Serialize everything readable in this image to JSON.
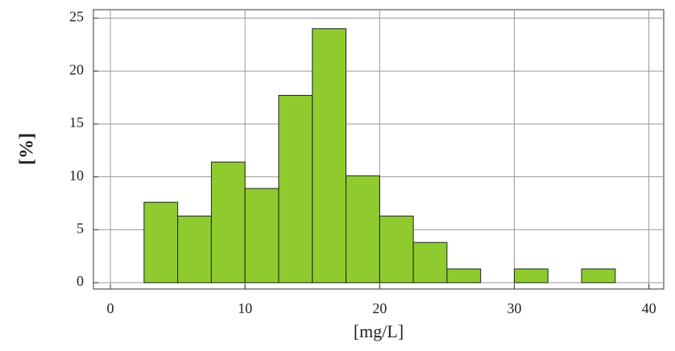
{
  "chart_data": {
    "type": "histogram",
    "x_label": "[mg/L]",
    "y_label": "[%]",
    "bins": [
      2.5,
      5,
      7.5,
      10,
      12.5,
      15,
      17.5,
      20,
      22.5,
      25,
      27.5,
      30,
      32.5,
      35,
      37.5
    ],
    "values": [
      7.6,
      6.3,
      11.4,
      8.9,
      17.7,
      24.0,
      10.1,
      6.3,
      3.8,
      1.3,
      0,
      1.3,
      0,
      1.3
    ],
    "color": "#8fcb2f",
    "xlim": [
      -1.26,
      41.1
    ],
    "ylim": [
      -0.6,
      25.8
    ],
    "xticks": [
      0,
      10,
      20,
      30,
      40
    ],
    "yticks": [
      0,
      5,
      10,
      15,
      20,
      25
    ],
    "grid": true
  }
}
